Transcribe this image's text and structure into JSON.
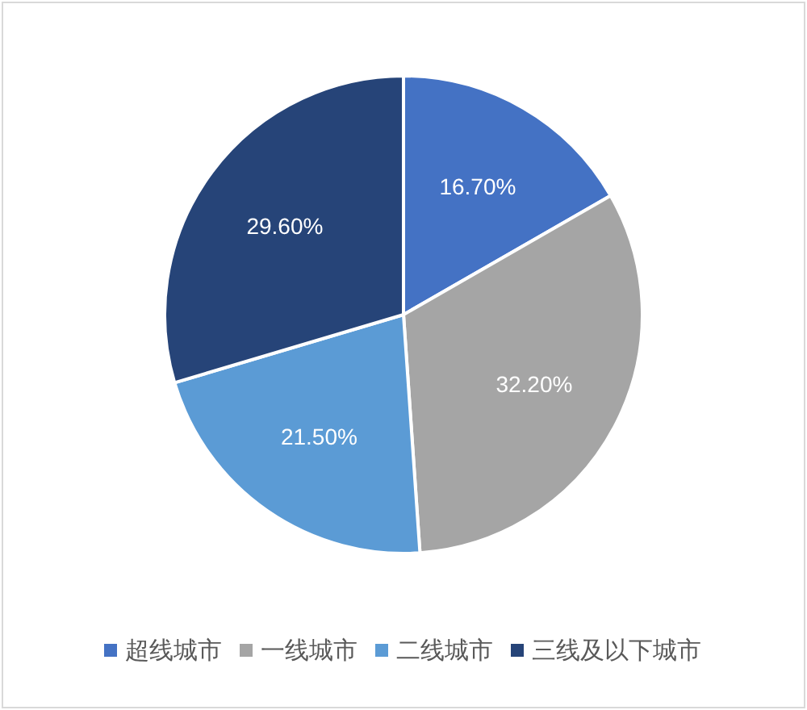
{
  "chart_data": {
    "type": "pie",
    "categories": [
      "超线城市",
      "一线城市",
      "二线城市",
      "三线及以下城市"
    ],
    "values": [
      16.7,
      32.2,
      21.5,
      29.6
    ],
    "colors": [
      "#4472c4",
      "#a5a5a5",
      "#5b9bd5",
      "#264478"
    ],
    "value_labels": [
      "16.70%",
      "32.20%",
      "21.50%",
      "29.60%"
    ],
    "legend": "bottom"
  }
}
